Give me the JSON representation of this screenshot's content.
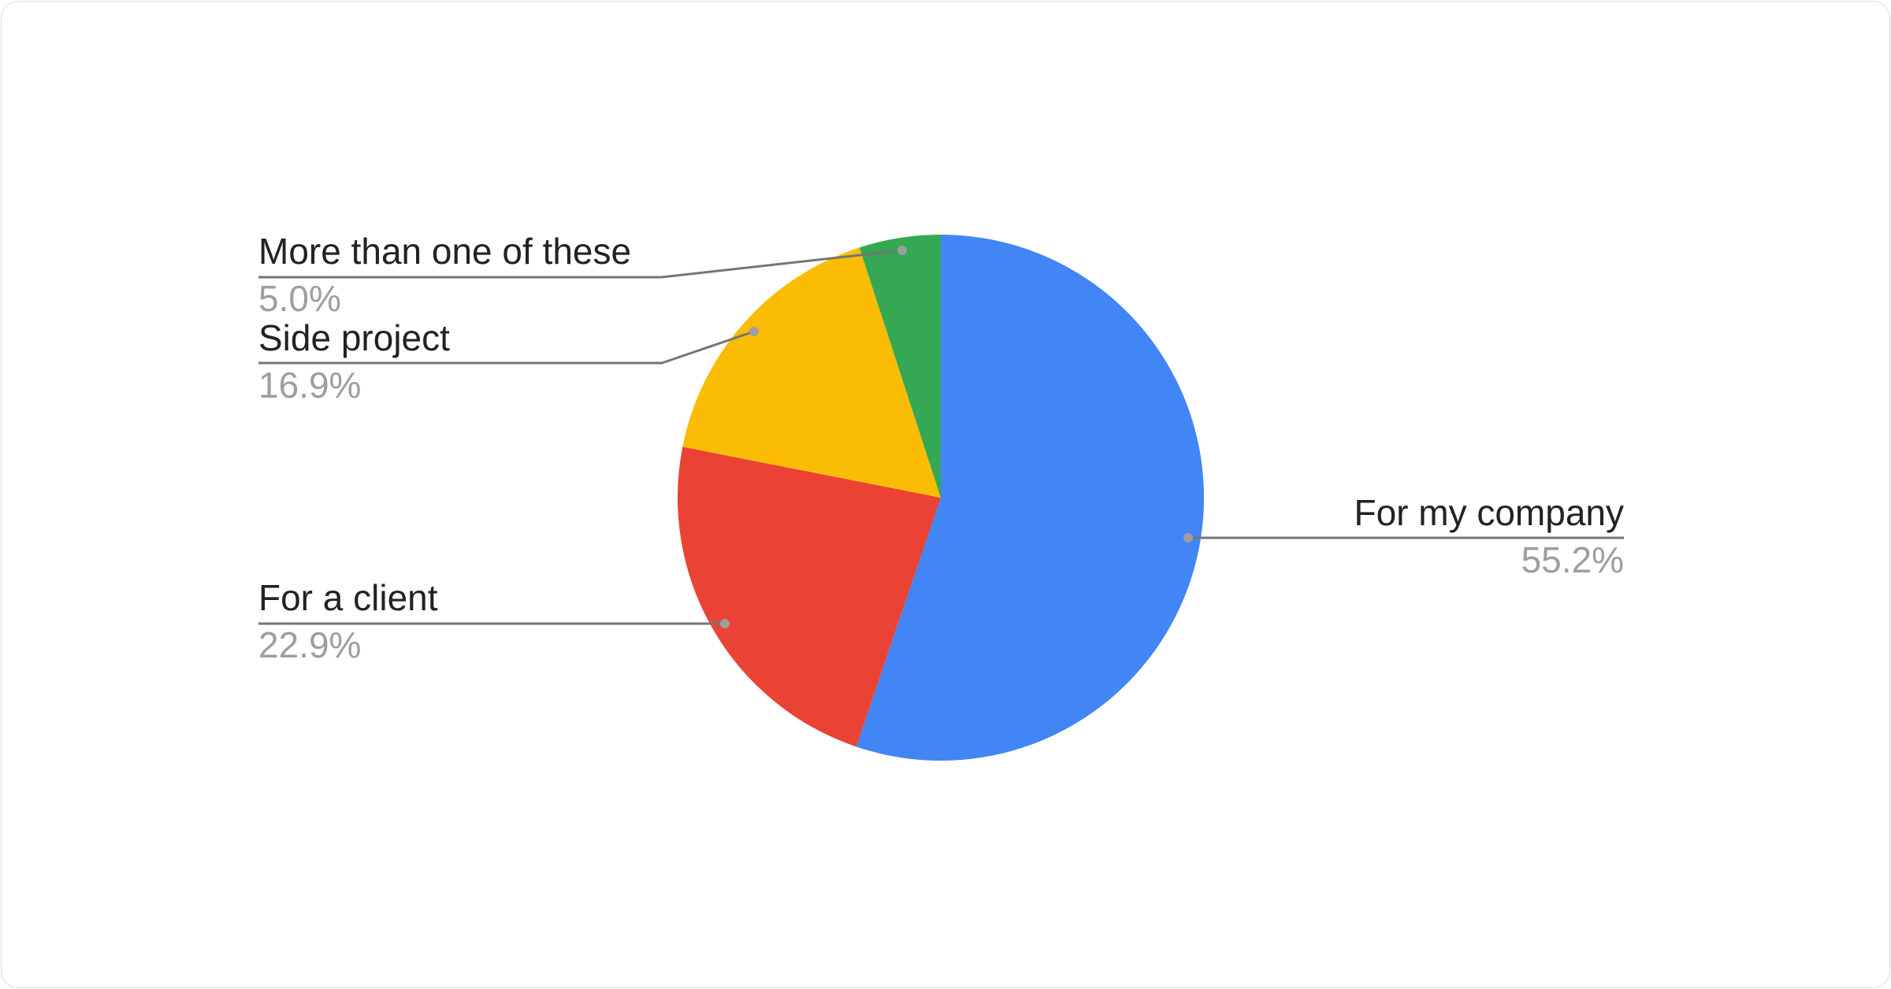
{
  "chart_data": {
    "type": "pie",
    "slices": [
      {
        "label": "For my company",
        "value": 55.2,
        "display": "55.2%",
        "color": "#4285f4"
      },
      {
        "label": "For a client",
        "value": 22.9,
        "display": "22.9%",
        "color": "#ea4335"
      },
      {
        "label": "Side project",
        "value": 16.9,
        "display": "16.9%",
        "color": "#fbbc04"
      },
      {
        "label": "More than one of these",
        "value": 5.0,
        "display": "5.0%",
        "color": "#34a853"
      }
    ],
    "start_angle": "top",
    "direction": "clockwise",
    "legend": "none",
    "labels": "outside with leader lines"
  }
}
